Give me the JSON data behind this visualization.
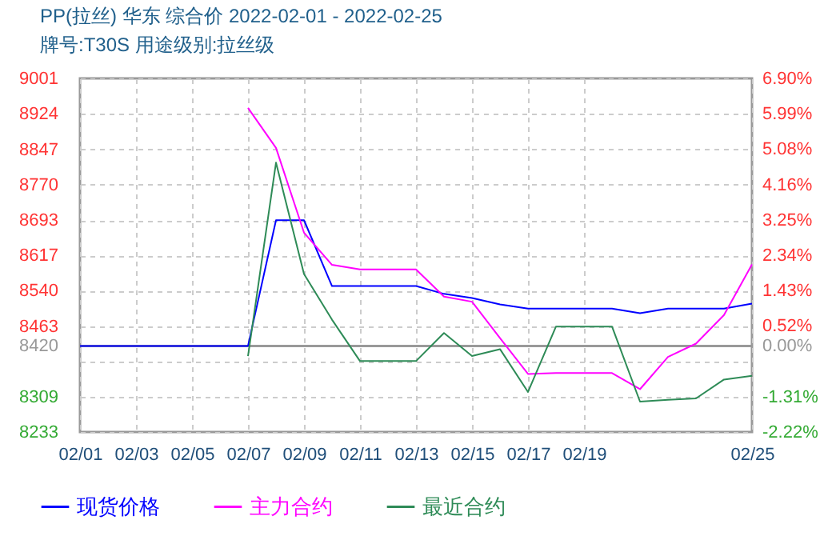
{
  "chart_data": {
    "type": "line",
    "title": "PP(拉丝) 华东 综合价 2022-02-01 - 2022-02-25",
    "subtitle": "牌号:T30S 用途级别:拉丝级",
    "x": [
      "2022-02-01",
      "2022-02-02",
      "2022-02-03",
      "2022-02-04",
      "2022-02-05",
      "2022-02-06",
      "2022-02-07",
      "2022-02-08",
      "2022-02-09",
      "2022-02-10",
      "2022-02-11",
      "2022-02-12",
      "2022-02-13",
      "2022-02-14",
      "2022-02-15",
      "2022-02-16",
      "2022-02-17",
      "2022-02-18",
      "2022-02-19",
      "2022-02-20",
      "2022-02-21",
      "2022-02-22",
      "2022-02-23",
      "2022-02-24",
      "2022-02-25"
    ],
    "series": [
      {
        "name": "现货价格",
        "color": "#0000ff",
        "values": [
          8420,
          8420,
          8420,
          8420,
          8420,
          8420,
          8420,
          8693,
          8693,
          8550,
          8550,
          8550,
          8550,
          8533,
          8524,
          8510,
          8501,
          8501,
          8501,
          8501,
          8491,
          8501,
          8501,
          8501,
          8512
        ]
      },
      {
        "name": "主力合约",
        "color": "#ff00ff",
        "values": [
          null,
          null,
          null,
          null,
          null,
          null,
          8937,
          8850,
          8666,
          8596,
          8586,
          8586,
          8586,
          8527,
          8516,
          8437,
          8359,
          8361,
          8361,
          8361,
          8326,
          8396,
          8425,
          8487,
          8597
        ]
      },
      {
        "name": "最近合约",
        "color": "#2e8b57",
        "values": [
          null,
          null,
          null,
          null,
          null,
          null,
          8398,
          8818,
          8576,
          8477,
          8387,
          8387,
          8387,
          8448,
          8398,
          8413,
          8320,
          8462,
          8462,
          8462,
          8299,
          8303,
          8306,
          8347,
          8355
        ]
      }
    ],
    "xlim": [
      "2022-02-01",
      "2022-02-25"
    ],
    "xticks": [
      {
        "value": "2022-02-01",
        "label": "02/01"
      },
      {
        "value": "2022-02-03",
        "label": "02/03"
      },
      {
        "value": "2022-02-05",
        "label": "02/05"
      },
      {
        "value": "2022-02-07",
        "label": "02/07"
      },
      {
        "value": "2022-02-09",
        "label": "02/09"
      },
      {
        "value": "2022-02-11",
        "label": "02/11"
      },
      {
        "value": "2022-02-13",
        "label": "02/13"
      },
      {
        "value": "2022-02-15",
        "label": "02/15"
      },
      {
        "value": "2022-02-17",
        "label": "02/17"
      },
      {
        "value": "2022-02-19",
        "label": "02/19"
      },
      {
        "value": "2022-02-25",
        "label": "02/25"
      }
    ],
    "ylim": [
      8233,
      9001
    ],
    "yticks": [
      8233,
      8309,
      {
        "value": 8386.6,
        "label": null
      },
      8420,
      8463,
      8540,
      8617,
      8693,
      8770,
      8847,
      8924,
      9001
    ],
    "y2lim": [
      -2.22,
      6.9
    ],
    "y2ticks": [
      {
        "value": -2.22,
        "label": "-2.22%"
      },
      {
        "value": -1.31,
        "label": "-1.31%"
      },
      {
        "value": 0,
        "label": "0.00%"
      },
      {
        "value": 0.52,
        "label": "0.52%"
      },
      {
        "value": 1.43,
        "label": "1.43%"
      },
      {
        "value": 2.34,
        "label": "2.34%"
      },
      {
        "value": 3.25,
        "label": "3.25%"
      },
      {
        "value": 4.16,
        "label": "4.16%"
      },
      {
        "value": 5.08,
        "label": "5.08%"
      },
      {
        "value": 5.99,
        "label": "5.99%"
      },
      {
        "value": 6.9,
        "label": "6.90%"
      }
    ],
    "ref_lines": [
      {
        "axis": "y2",
        "value": 0,
        "color": "#999999"
      }
    ],
    "grid": true,
    "legend": "bottom",
    "marker": "none",
    "line_style": "solid"
  }
}
